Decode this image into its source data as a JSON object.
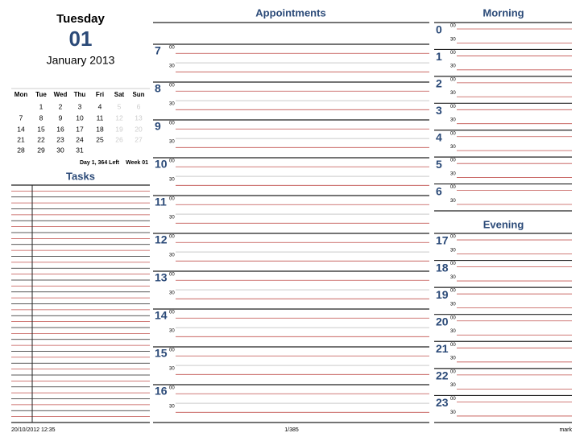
{
  "header": {
    "weekday": "Tuesday",
    "day": "01",
    "month_year": "January 2013"
  },
  "calendar": {
    "weekdays": [
      "Mon",
      "Tue",
      "Wed",
      "Thu",
      "Fri",
      "Sat",
      "Sun"
    ],
    "weeks": [
      [
        null,
        1,
        2,
        3,
        4,
        5,
        6
      ],
      [
        7,
        8,
        9,
        10,
        11,
        12,
        13
      ],
      [
        14,
        15,
        16,
        17,
        18,
        19,
        20
      ],
      [
        21,
        22,
        23,
        24,
        25,
        26,
        27
      ],
      [
        28,
        29,
        30,
        31,
        null,
        null,
        null
      ]
    ],
    "day_info": "Day 1, 364 Left",
    "week": "Week 01"
  },
  "tasks": {
    "title": "Tasks"
  },
  "minutes": [
    "00",
    "30"
  ],
  "appointments": {
    "title": "Appointments",
    "hours": [
      "7",
      "8",
      "9",
      "10",
      "11",
      "12",
      "13",
      "14",
      "15",
      "16"
    ]
  },
  "morning": {
    "title": "Morning",
    "hours": [
      "0",
      "1",
      "2",
      "3",
      "4",
      "5",
      "6"
    ]
  },
  "evening": {
    "title": "Evening",
    "hours": [
      "17",
      "18",
      "19",
      "20",
      "21",
      "22",
      "23"
    ]
  },
  "footer": {
    "printed": "20/10/2012 12:35",
    "page": "1/385",
    "user": "mark"
  }
}
